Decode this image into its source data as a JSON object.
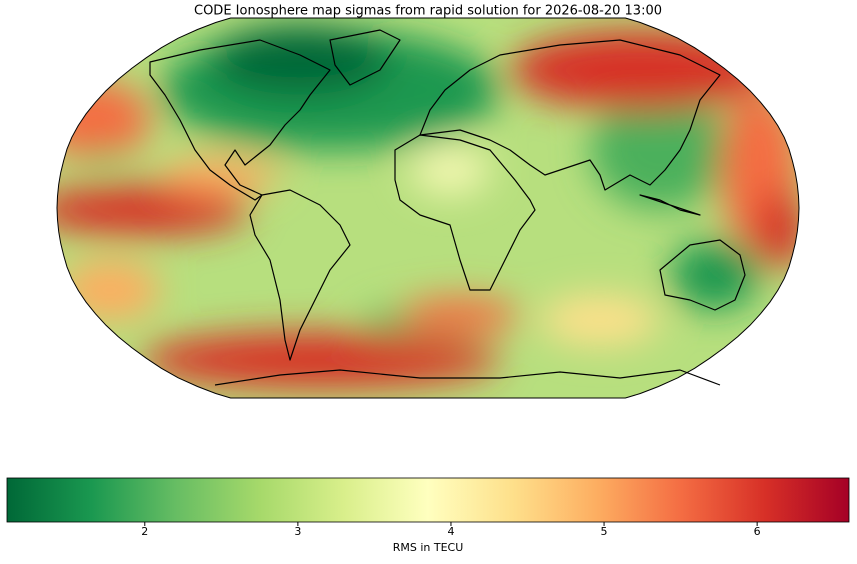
{
  "chart_data": {
    "type": "map",
    "title": "CODE Ionosphere map sigmas from rapid solution for 2026-08-20 13:00",
    "colorbar": {
      "label": "RMS in TECU",
      "lim": [
        1.1,
        6.6
      ],
      "ticks": [
        2,
        3,
        4,
        5,
        6
      ],
      "colors": [
        "#006837",
        "#1a9850",
        "#66bd63",
        "#a6d96a",
        "#d9ef8b",
        "#ffffbf",
        "#fee08b",
        "#fdae61",
        "#f46d43",
        "#d73027",
        "#a50026"
      ]
    }
  }
}
